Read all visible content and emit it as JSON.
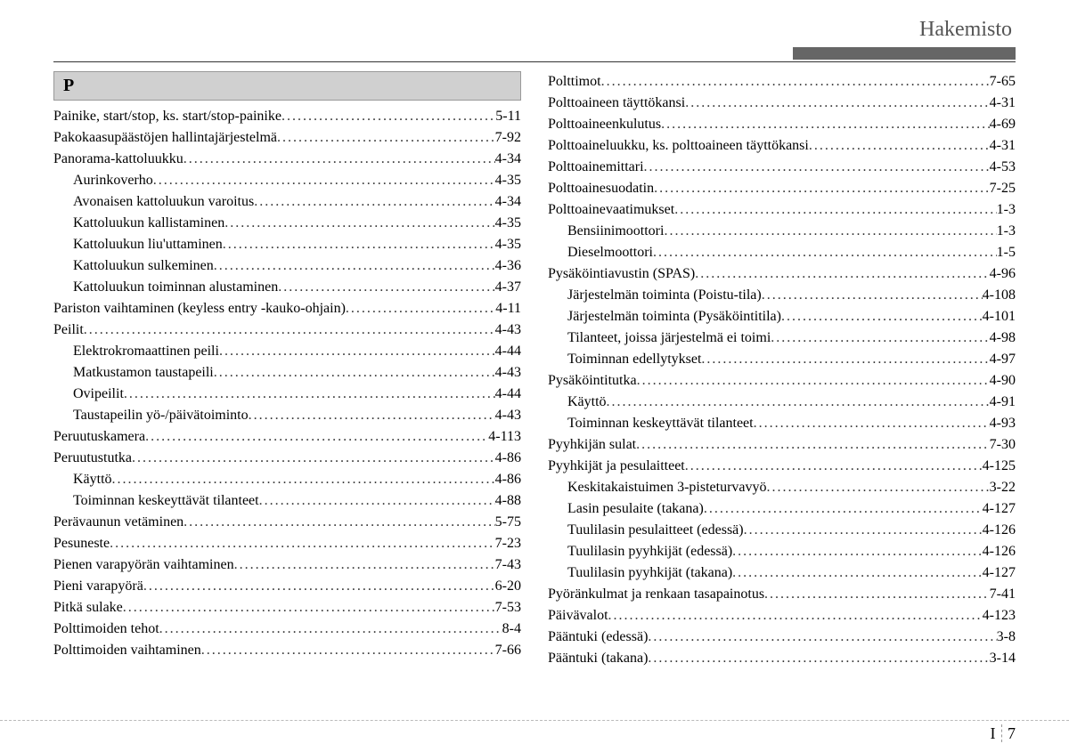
{
  "header": "Hakemisto",
  "sectionLetter": "P",
  "footer": {
    "chapter": "I",
    "page": "7"
  },
  "leftColumn": [
    {
      "label": "Painike, start/stop, ks. start/stop-painike",
      "page": "5-11",
      "sub": false
    },
    {
      "label": "Pakokaasupäästöjen hallintajärjestelmä",
      "page": "7-92",
      "sub": false
    },
    {
      "label": "Panorama-kattoluukku",
      "page": "4-34",
      "sub": false
    },
    {
      "label": "Aurinkoverho",
      "page": "4-35",
      "sub": true
    },
    {
      "label": "Avonaisen kattoluukun varoitus",
      "page": "4-34",
      "sub": true
    },
    {
      "label": "Kattoluukun kallistaminen",
      "page": "4-35",
      "sub": true
    },
    {
      "label": "Kattoluukun liu'uttaminen",
      "page": "4-35",
      "sub": true
    },
    {
      "label": "Kattoluukun sulkeminen",
      "page": "4-36",
      "sub": true
    },
    {
      "label": "Kattoluukun toiminnan alustaminen",
      "page": "4-37",
      "sub": true
    },
    {
      "label": "Pariston vaihtaminen (keyless entry -kauko-ohjain)",
      "page": "4-11",
      "sub": false
    },
    {
      "label": "Peilit",
      "page": "4-43",
      "sub": false
    },
    {
      "label": "Elektrokromaattinen peili",
      "page": "4-44",
      "sub": true
    },
    {
      "label": "Matkustamon taustapeili",
      "page": "4-43",
      "sub": true
    },
    {
      "label": "Ovipeilit",
      "page": "4-44",
      "sub": true
    },
    {
      "label": "Taustapeilin yö-/päivätoiminto",
      "page": "4-43",
      "sub": true
    },
    {
      "label": "Peruutuskamera",
      "page": "4-113",
      "sub": false
    },
    {
      "label": "Peruutustutka",
      "page": "4-86",
      "sub": false
    },
    {
      "label": "Käyttö",
      "page": "4-86",
      "sub": true
    },
    {
      "label": "Toiminnan keskeyttävät tilanteet",
      "page": "4-88",
      "sub": true
    },
    {
      "label": "Perävaunun vetäminen",
      "page": "5-75",
      "sub": false
    },
    {
      "label": "Pesuneste",
      "page": "7-23",
      "sub": false
    },
    {
      "label": "Pienen varapyörän vaihtaminen",
      "page": "7-43",
      "sub": false
    },
    {
      "label": "Pieni varapyörä",
      "page": "6-20",
      "sub": false
    },
    {
      "label": "Pitkä sulake",
      "page": "7-53",
      "sub": false
    },
    {
      "label": "Polttimoiden tehot",
      "page": "8-4",
      "sub": false
    },
    {
      "label": "Polttimoiden vaihtaminen",
      "page": "7-66",
      "sub": false
    }
  ],
  "rightColumn": [
    {
      "label": "Polttimot",
      "page": "7-65",
      "sub": false
    },
    {
      "label": "Polttoaineen täyttökansi",
      "page": "4-31",
      "sub": false
    },
    {
      "label": "Polttoaineenkulutus",
      "page": "4-69",
      "sub": false
    },
    {
      "label": "Polttoaineluukku, ks. polttoaineen täyttökansi",
      "page": "4-31",
      "sub": false
    },
    {
      "label": "Polttoainemittari",
      "page": "4-53",
      "sub": false
    },
    {
      "label": "Polttoainesuodatin",
      "page": "7-25",
      "sub": false
    },
    {
      "label": "Polttoainevaatimukset",
      "page": "1-3",
      "sub": false
    },
    {
      "label": "Bensiinimoottori",
      "page": "1-3",
      "sub": true
    },
    {
      "label": "Dieselmoottori",
      "page": "1-5",
      "sub": true
    },
    {
      "label": "Pysäköintiavustin (SPAS)",
      "page": "4-96",
      "sub": false
    },
    {
      "label": "Järjestelmän toiminta (Poistu-tila)",
      "page": "4-108",
      "sub": true
    },
    {
      "label": "Järjestelmän toiminta (Pysäköintitila)",
      "page": "4-101",
      "sub": true
    },
    {
      "label": "Tilanteet, joissa järjestelmä ei toimi",
      "page": "4-98",
      "sub": true
    },
    {
      "label": "Toiminnan edellytykset",
      "page": "4-97",
      "sub": true
    },
    {
      "label": "Pysäköintitutka",
      "page": "4-90",
      "sub": false
    },
    {
      "label": "Käyttö",
      "page": "4-91",
      "sub": true
    },
    {
      "label": "Toiminnan keskeyttävät tilanteet",
      "page": "4-93",
      "sub": true
    },
    {
      "label": "Pyyhkijän sulat",
      "page": "7-30",
      "sub": false
    },
    {
      "label": "Pyyhkijät ja pesulaitteet",
      "page": "4-125",
      "sub": false
    },
    {
      "label": "Keskitakaistuimen 3-pisteturvavyö",
      "page": "3-22",
      "sub": true
    },
    {
      "label": "Lasin pesulaite (takana)",
      "page": "4-127",
      "sub": true
    },
    {
      "label": "Tuulilasin pesulaitteet (edessä)",
      "page": "4-126",
      "sub": true
    },
    {
      "label": "Tuulilasin pyyhkijät (edessä)",
      "page": "4-126",
      "sub": true
    },
    {
      "label": "Tuulilasin pyyhkijät (takana)",
      "page": "4-127",
      "sub": true
    },
    {
      "label": "Pyöränkulmat ja renkaan tasapainotus",
      "page": "7-41",
      "sub": false
    },
    {
      "label": "Päivävalot",
      "page": "4-123",
      "sub": false
    },
    {
      "label": "Pääntuki (edessä)",
      "page": "3-8",
      "sub": false
    },
    {
      "label": "Pääntuki (takana)",
      "page": "3-14",
      "sub": false
    }
  ]
}
